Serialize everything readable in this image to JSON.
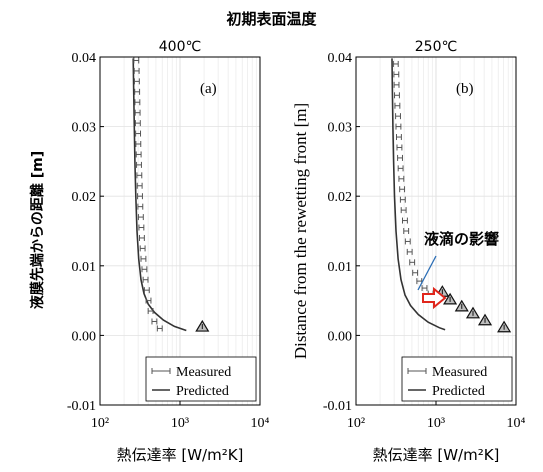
{
  "header": {
    "title": "初期表面温度",
    "ylabel_left": "液膜先端からの距離 [m]",
    "annotation": "液滴の影響"
  },
  "chart_data": [
    {
      "panel": "a",
      "type": "scatter",
      "title": "400℃",
      "xlabel": "熱伝達率 [W/m²K]",
      "xscale": "log",
      "xlim": [
        100,
        10000
      ],
      "ylim": [
        -0.01,
        0.04
      ],
      "xticks": [
        "10²",
        "10³",
        "10⁴"
      ],
      "yticks": [
        "-0.01",
        "0.00",
        "0.01",
        "0.02",
        "0.03",
        "0.04"
      ],
      "grid": true,
      "panel_label": "(a)",
      "legend": {
        "placement": "bottom-right",
        "entries": [
          "Measured",
          "Predicted"
        ]
      },
      "series": [
        {
          "name": "Measured",
          "points": [
            {
              "x": 285,
              "y": 0.0395
            },
            {
              "x": 288,
              "y": 0.038
            },
            {
              "x": 290,
              "y": 0.0365
            },
            {
              "x": 292,
              "y": 0.035
            },
            {
              "x": 294,
              "y": 0.0335
            },
            {
              "x": 296,
              "y": 0.032
            },
            {
              "x": 298,
              "y": 0.0305
            },
            {
              "x": 300,
              "y": 0.029
            },
            {
              "x": 302,
              "y": 0.0275
            },
            {
              "x": 305,
              "y": 0.026
            },
            {
              "x": 308,
              "y": 0.0245
            },
            {
              "x": 311,
              "y": 0.023
            },
            {
              "x": 314,
              "y": 0.0215
            },
            {
              "x": 317,
              "y": 0.02
            },
            {
              "x": 320,
              "y": 0.0185
            },
            {
              "x": 325,
              "y": 0.017
            },
            {
              "x": 330,
              "y": 0.0155
            },
            {
              "x": 335,
              "y": 0.014
            },
            {
              "x": 342,
              "y": 0.0125
            },
            {
              "x": 350,
              "y": 0.011
            },
            {
              "x": 360,
              "y": 0.0095
            },
            {
              "x": 372,
              "y": 0.008
            },
            {
              "x": 386,
              "y": 0.0065
            },
            {
              "x": 405,
              "y": 0.005
            },
            {
              "x": 430,
              "y": 0.0035
            },
            {
              "x": 480,
              "y": 0.002
            },
            {
              "x": 560,
              "y": 0.001
            }
          ]
        },
        {
          "name": "Predicted",
          "curve": [
            {
              "x": 260,
              "y": 0.0398
            },
            {
              "x": 264,
              "y": 0.035
            },
            {
              "x": 268,
              "y": 0.03
            },
            {
              "x": 273,
              "y": 0.025
            },
            {
              "x": 280,
              "y": 0.02
            },
            {
              "x": 290,
              "y": 0.015
            },
            {
              "x": 305,
              "y": 0.011
            },
            {
              "x": 325,
              "y": 0.008
            },
            {
              "x": 355,
              "y": 0.006
            },
            {
              "x": 400,
              "y": 0.0045
            },
            {
              "x": 480,
              "y": 0.0033
            },
            {
              "x": 620,
              "y": 0.0022
            },
            {
              "x": 850,
              "y": 0.0013
            },
            {
              "x": 1200,
              "y": 0.0007
            }
          ]
        },
        {
          "name": "droplet",
          "points": [
            {
              "x": 1900,
              "y": 0.0012
            }
          ]
        }
      ]
    },
    {
      "panel": "b",
      "type": "scatter",
      "title": "250℃",
      "xlabel": "熱伝達率 [W/m²K]",
      "ylabel": "Distance from the rewetting front [m]",
      "xscale": "log",
      "xlim": [
        100,
        10000
      ],
      "ylim": [
        -0.01,
        0.04
      ],
      "xticks": [
        "10²",
        "10³",
        "10⁴"
      ],
      "yticks": [
        "-0.01",
        "0.00",
        "0.01",
        "0.02",
        "0.03",
        "0.04"
      ],
      "grid": true,
      "panel_label": "(b)",
      "legend": {
        "placement": "bottom-right",
        "entries": [
          "Measured",
          "Predicted"
        ]
      },
      "series": [
        {
          "name": "Measured",
          "points": [
            {
              "x": 315,
              "y": 0.039
            },
            {
              "x": 320,
              "y": 0.0375
            },
            {
              "x": 322,
              "y": 0.036
            },
            {
              "x": 326,
              "y": 0.0345
            },
            {
              "x": 330,
              "y": 0.033
            },
            {
              "x": 336,
              "y": 0.0315
            },
            {
              "x": 340,
              "y": 0.03
            },
            {
              "x": 345,
              "y": 0.0285
            },
            {
              "x": 350,
              "y": 0.027
            },
            {
              "x": 356,
              "y": 0.0255
            },
            {
              "x": 362,
              "y": 0.024
            },
            {
              "x": 370,
              "y": 0.0225
            },
            {
              "x": 378,
              "y": 0.021
            },
            {
              "x": 386,
              "y": 0.0195
            },
            {
              "x": 395,
              "y": 0.018
            },
            {
              "x": 410,
              "y": 0.0165
            },
            {
              "x": 425,
              "y": 0.015
            },
            {
              "x": 445,
              "y": 0.0135
            },
            {
              "x": 470,
              "y": 0.012
            },
            {
              "x": 505,
              "y": 0.0105
            },
            {
              "x": 550,
              "y": 0.009
            },
            {
              "x": 620,
              "y": 0.0078
            },
            {
              "x": 720,
              "y": 0.0068
            },
            {
              "x": 860,
              "y": 0.006
            },
            {
              "x": 1000,
              "y": 0.0055
            }
          ]
        },
        {
          "name": "Predicted",
          "curve": [
            {
              "x": 282,
              "y": 0.0398
            },
            {
              "x": 285,
              "y": 0.035
            },
            {
              "x": 289,
              "y": 0.03
            },
            {
              "x": 295,
              "y": 0.025
            },
            {
              "x": 303,
              "y": 0.02
            },
            {
              "x": 316,
              "y": 0.015
            },
            {
              "x": 336,
              "y": 0.011
            },
            {
              "x": 365,
              "y": 0.008
            },
            {
              "x": 410,
              "y": 0.0058
            },
            {
              "x": 480,
              "y": 0.0043
            },
            {
              "x": 600,
              "y": 0.003
            },
            {
              "x": 800,
              "y": 0.0019
            },
            {
              "x": 1100,
              "y": 0.0011
            },
            {
              "x": 1300,
              "y": 0.0008
            }
          ]
        },
        {
          "name": "droplet",
          "points": [
            {
              "x": 1200,
              "y": 0.0062
            },
            {
              "x": 1500,
              "y": 0.0051
            },
            {
              "x": 2100,
              "y": 0.0041
            },
            {
              "x": 2900,
              "y": 0.0031
            },
            {
              "x": 4100,
              "y": 0.0021
            },
            {
              "x": 7100,
              "y": 0.0011
            }
          ]
        }
      ]
    }
  ]
}
